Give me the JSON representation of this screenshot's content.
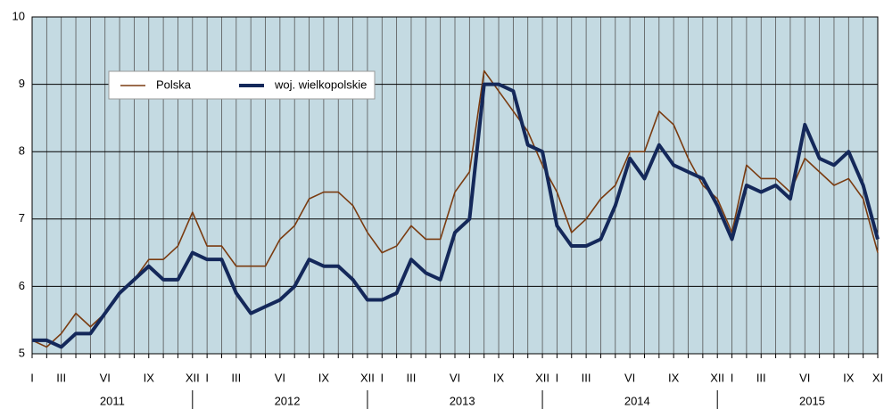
{
  "chart_data": {
    "type": "line",
    "categories": [
      "I",
      null,
      "III",
      null,
      null,
      "VI",
      null,
      null,
      "IX",
      null,
      null,
      "XII",
      "I",
      null,
      "III",
      null,
      null,
      "VI",
      null,
      null,
      "IX",
      null,
      null,
      "XII",
      "I",
      null,
      "III",
      null,
      null,
      "VI",
      null,
      null,
      "IX",
      null,
      null,
      "XII",
      "I",
      null,
      "III",
      null,
      null,
      "VI",
      null,
      null,
      "IX",
      null,
      null,
      "XII",
      "I",
      null,
      "III",
      null,
      null,
      "VI",
      null,
      null,
      "IX",
      null,
      "XI"
    ],
    "year_labels": [
      "2011",
      "2012",
      "2013",
      "2014",
      "2015"
    ],
    "series": [
      {
        "name": "Polska",
        "color": "#7a3b10",
        "width": 1.6,
        "values": [
          5.2,
          5.1,
          5.3,
          5.6,
          5.4,
          5.6,
          5.9,
          6.1,
          6.4,
          6.4,
          6.6,
          7.1,
          6.6,
          6.6,
          6.3,
          6.3,
          6.3,
          6.7,
          6.9,
          7.3,
          7.4,
          7.4,
          7.2,
          6.8,
          6.5,
          6.6,
          6.9,
          6.7,
          6.7,
          7.4,
          7.7,
          9.2,
          8.9,
          8.6,
          8.3,
          7.8,
          7.4,
          6.8,
          7.0,
          7.3,
          7.5,
          8.0,
          8.0,
          8.6,
          8.4,
          7.9,
          7.5,
          7.3,
          6.8,
          7.8,
          7.6,
          7.6,
          7.4,
          7.9,
          7.7,
          7.5,
          7.6,
          7.3,
          6.5
        ]
      },
      {
        "name": "woj. wielkopolskie",
        "color": "#14285a",
        "width": 4,
        "values": [
          5.2,
          5.2,
          5.1,
          5.3,
          5.3,
          5.6,
          5.9,
          6.1,
          6.3,
          6.1,
          6.1,
          6.5,
          6.4,
          6.4,
          5.9,
          5.6,
          5.7,
          5.8,
          6.0,
          6.4,
          6.3,
          6.3,
          6.1,
          5.8,
          5.8,
          5.9,
          6.4,
          6.2,
          6.1,
          6.8,
          7.0,
          9.0,
          9.0,
          8.9,
          8.1,
          8.0,
          6.9,
          6.6,
          6.6,
          6.7,
          7.2,
          7.9,
          7.6,
          8.1,
          7.8,
          7.7,
          7.6,
          7.2,
          6.7,
          7.5,
          7.4,
          7.5,
          7.3,
          8.4,
          7.9,
          7.8,
          8.0,
          7.5,
          6.7
        ]
      }
    ],
    "ylim": [
      5,
      10
    ],
    "yticks": [
      5,
      6,
      7,
      8,
      9,
      10
    ],
    "grid": true
  }
}
